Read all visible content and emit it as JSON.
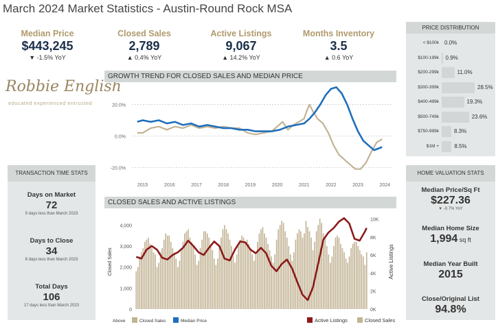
{
  "title": "March 2024 Market Statistics - Austin-Round Rock MSA",
  "kpis": [
    {
      "label": "Median Price",
      "value": "$443,245",
      "yoy": "▼ -1.5% YoY"
    },
    {
      "label": "Closed Sales",
      "value": "2,789",
      "yoy": "▲ 0.4% YoY"
    },
    {
      "label": "Active Listings",
      "value": "9,067",
      "yoy": "▲ 14.2% YoY"
    },
    {
      "label": "Months Inventory",
      "value": "3.5",
      "yoy": "▲ 0.6 YoY"
    }
  ],
  "logo": {
    "signature": "Robbie English",
    "tagline": "educated  experienced  entrusted"
  },
  "transaction": {
    "header": "TRANSACTION TIME STATS",
    "stats": [
      {
        "label": "Days on Market",
        "value": "72",
        "sub": "9 days less than March 2023"
      },
      {
        "label": "Days to Close",
        "value": "34",
        "sub": "8 days less than March 2023"
      },
      {
        "label": "Total Days",
        "value": "106",
        "sub": "17 days less than March 2023"
      }
    ]
  },
  "price_distribution": {
    "header": "PRICE DISTRIBUTION",
    "rows": [
      {
        "category": "< $100k",
        "pct_label": "0.0%",
        "value": 0.0
      },
      {
        "category": "$100-199k",
        "pct_label": "0.9%",
        "value": 0.9
      },
      {
        "category": "$200-299k",
        "pct_label": "11.0%",
        "value": 11.0
      },
      {
        "category": "$300-399k",
        "pct_label": "28.5%",
        "value": 28.5
      },
      {
        "category": "$400-499k",
        "pct_label": "19.3%",
        "value": 19.3
      },
      {
        "category": "$500-749k",
        "pct_label": "23.6%",
        "value": 23.6
      },
      {
        "category": "$750-999k",
        "pct_label": "8.3%",
        "value": 8.3
      },
      {
        "category": "$1M +",
        "pct_label": "8.5%",
        "value": 8.5
      }
    ]
  },
  "home_valuation": {
    "header": "HOME VALUATION STATS",
    "stats": [
      {
        "label": "Median Price/Sq Ft",
        "value": "$227.36",
        "unit": "",
        "sub": "▼ -0.7% YoY"
      },
      {
        "label": "Median Home Size",
        "value": "1,994",
        "unit": " sq ft",
        "sub": ""
      },
      {
        "label": "Median Year Built",
        "value": "2015",
        "unit": "",
        "sub": ""
      },
      {
        "label": "Close/Original List",
        "value": "94.8%",
        "unit": "",
        "sub": ""
      }
    ]
  },
  "chart_data": [
    {
      "type": "line",
      "title": "GROWTH TREND FOR CLOSED SALES AND MEDIAN PRICE",
      "ylim": [
        -22,
        32
      ],
      "yticks": [
        20,
        0,
        -20
      ],
      "ytick_labels": [
        "20.0%",
        "0.0%",
        "-20.0%"
      ],
      "xlim": [
        2014.6,
        2024.3
      ],
      "xticks": [
        2015,
        2016,
        2017,
        2018,
        2019,
        2020,
        2021,
        2022,
        2023,
        2024
      ],
      "legend": "bottom",
      "series": [
        {
          "name": "Closed Sales",
          "color": "#c2b394",
          "x": [
            2014.8,
            2015.0,
            2015.3,
            2015.6,
            2015.9,
            2016.2,
            2016.5,
            2016.8,
            2017.1,
            2017.4,
            2017.7,
            2018.0,
            2018.3,
            2018.6,
            2018.9,
            2019.2,
            2019.5,
            2019.8,
            2020.0,
            2020.2,
            2020.4,
            2020.6,
            2020.8,
            2021.0,
            2021.1,
            2021.2,
            2021.35,
            2021.5,
            2021.7,
            2021.9,
            2022.1,
            2022.3,
            2022.5,
            2022.7,
            2022.9,
            2023.1,
            2023.3,
            2023.5,
            2023.7,
            2023.9
          ],
          "y": [
            2,
            2,
            5,
            6,
            4,
            6,
            5,
            7,
            5,
            6,
            5,
            6,
            5,
            5,
            2,
            1,
            2,
            3,
            6,
            9,
            4,
            7,
            9,
            11,
            16,
            20,
            15,
            11,
            8,
            2,
            -6,
            -12,
            -15,
            -18,
            -21,
            -21,
            -17,
            -10,
            -4,
            -2
          ]
        },
        {
          "name": "Median Price",
          "color": "#1f6fba",
          "x": [
            2014.8,
            2015.0,
            2015.3,
            2015.6,
            2015.9,
            2016.2,
            2016.5,
            2016.8,
            2017.1,
            2017.4,
            2017.7,
            2018.0,
            2018.3,
            2018.6,
            2018.9,
            2019.2,
            2019.5,
            2019.8,
            2020.1,
            2020.4,
            2020.7,
            2021.0,
            2021.2,
            2021.4,
            2021.6,
            2021.8,
            2022.0,
            2022.2,
            2022.4,
            2022.6,
            2022.8,
            2023.0,
            2023.2,
            2023.4,
            2023.6,
            2023.9
          ],
          "y": [
            9,
            10,
            9,
            10,
            8,
            9,
            7,
            8,
            6,
            7,
            6,
            5,
            5,
            4,
            4,
            3,
            3,
            3,
            4,
            6,
            7,
            8,
            11,
            15,
            20,
            26,
            30,
            31,
            27,
            20,
            11,
            3,
            -3,
            -6,
            -9,
            -7
          ]
        }
      ]
    },
    {
      "type": "bar",
      "title": "CLOSED SALES AND ACTIVE LISTINGS",
      "ylabel": "Closed Sales",
      "y2label": "Active Listings",
      "ylim": [
        0,
        4500
      ],
      "yticks": [
        0,
        1000,
        2000,
        3000,
        4000
      ],
      "ytick_labels": [
        "0",
        "1,000",
        "2,000",
        "3,000",
        "4,000"
      ],
      "y2lim": [
        0,
        10500
      ],
      "y2ticks": [
        0,
        2000,
        4000,
        6000,
        8000,
        10000
      ],
      "y2tick_labels": [
        "0K",
        "2K",
        "4K",
        "6K",
        "8K",
        "10K"
      ],
      "legend": "bottom",
      "legend_note": "Above",
      "legend_left": [
        {
          "name": "Closed Sales",
          "color": "#c2b394"
        },
        {
          "name": "Median Price",
          "color": "#1f6fba"
        }
      ],
      "legend_right": [
        {
          "name": "Active Listings",
          "color": "#8b1a1a"
        },
        {
          "name": "Closed Sales",
          "color": "#c2b394"
        }
      ],
      "series": [
        {
          "name": "Closed Sales",
          "color": "#c2b394",
          "values": [
            1800,
            2000,
            2500,
            2700,
            2900,
            3200,
            3300,
            3400,
            3100,
            2900,
            2700,
            2600,
            2000,
            2200,
            2700,
            2900,
            3300,
            3600,
            3500,
            3500,
            3200,
            2900,
            2700,
            2400,
            2000,
            2300,
            2900,
            3200,
            3600,
            3700,
            3800,
            3400,
            3200,
            3000,
            2600,
            2100,
            2300,
            2900,
            3300,
            3700,
            3700,
            3600,
            3400,
            3100,
            2800,
            2400,
            2100,
            2400,
            3000,
            3400,
            3800,
            4000,
            3800,
            3600,
            3300,
            3000,
            2500,
            2200,
            2600,
            3000,
            3300,
            3500,
            3400,
            3200,
            3300,
            3100,
            2900,
            2600,
            2300,
            2600,
            3200,
            3600,
            3800,
            3900,
            3600,
            3400,
            3100,
            2800,
            2500,
            2200,
            2600,
            3300,
            3800,
            4000,
            4200,
            4100,
            3700,
            3400,
            3000,
            2600,
            2300,
            2700,
            3300,
            3600,
            3800,
            3700,
            3400,
            3600,
            4200,
            3900,
            3700,
            3400,
            2800,
            3200,
            3700,
            4000,
            4300,
            4100,
            3600,
            3400,
            3000,
            2600,
            2200,
            2500,
            3000,
            3400,
            3500,
            3400,
            3100,
            2900,
            2700,
            2400,
            2200,
            2500,
            2900,
            3100,
            3200,
            3200,
            3000,
            2800,
            2600,
            2500,
            2100,
            2700
          ]
        },
        {
          "name": "Active Listings",
          "color": "#8b1a1a",
          "x": [
            0,
            3,
            6,
            9,
            12,
            15,
            18,
            21,
            24,
            27,
            30,
            33,
            36,
            39,
            42,
            45,
            48,
            51,
            54,
            57,
            60,
            63,
            66,
            69,
            72,
            75,
            78,
            81,
            84,
            87,
            90,
            93,
            96,
            99,
            102,
            105,
            108,
            111,
            114,
            117,
            120,
            123,
            126,
            129,
            132,
            133
          ],
          "values": [
            5800,
            5600,
            6600,
            7000,
            6600,
            5700,
            5500,
            6000,
            6300,
            6800,
            7600,
            7000,
            6300,
            6000,
            6800,
            7500,
            7000,
            5600,
            5400,
            6600,
            7500,
            7400,
            6600,
            6200,
            6800,
            6200,
            4800,
            4200,
            5000,
            5500,
            4500,
            3000,
            1600,
            1000,
            2400,
            5000,
            7700,
            8500,
            9000,
            9700,
            10100,
            9500,
            7800,
            7600,
            8600,
            9000
          ]
        }
      ]
    }
  ]
}
